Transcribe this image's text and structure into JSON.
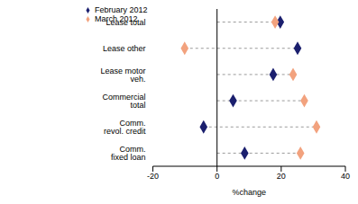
{
  "chart_data": {
    "type": "scatter",
    "orientation": "horizontal",
    "categories": [
      "Comm. fixed loan",
      "Comm. revol. credit",
      "Commercial total",
      "Lease motor veh.",
      "Lease other",
      "Lease total"
    ],
    "series": [
      {
        "name": "February 2012",
        "color": "#1b1f6e",
        "marker": "diamond",
        "values": [
          8.6,
          -4.2,
          5.0,
          17.5,
          25.1,
          19.7
        ]
      },
      {
        "name": "March 2012",
        "color": "#f2a27e",
        "marker": "diamond",
        "values": [
          26.0,
          31.0,
          27.2,
          23.7,
          -10.1,
          18.1
        ]
      }
    ],
    "xlabel": "%change",
    "xlim": [
      -20,
      40
    ],
    "xticks": [
      -20,
      0,
      20,
      40
    ],
    "legend": "upper left",
    "grid": true
  }
}
